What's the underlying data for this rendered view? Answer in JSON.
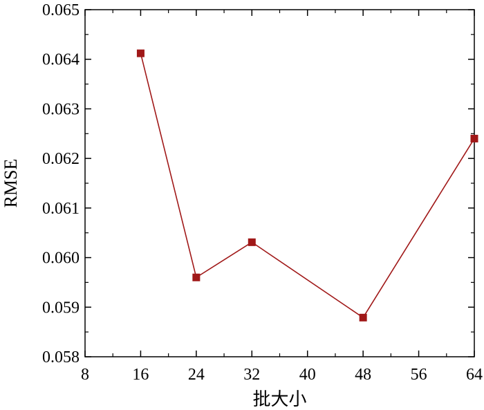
{
  "chart_data": {
    "type": "line",
    "xlabel": "批大小",
    "ylabel": "RMSE",
    "xlim": [
      8,
      64
    ],
    "ylim": [
      0.058,
      0.065
    ],
    "x_ticks": [
      "8",
      "16",
      "24",
      "32",
      "40",
      "48",
      "56",
      "64"
    ],
    "y_ticks": [
      "0.058",
      "0.059",
      "0.060",
      "0.061",
      "0.062",
      "0.063",
      "0.064",
      "0.065"
    ],
    "grid": false,
    "legend": "none",
    "line_color": "#a01818",
    "marker_color": "#a01818",
    "marker": "square",
    "series": [
      {
        "x": [
          16,
          24,
          32,
          48,
          64
        ],
        "values": [
          0.06412,
          0.0596,
          0.06031,
          0.05879,
          0.0624
        ]
      }
    ]
  }
}
